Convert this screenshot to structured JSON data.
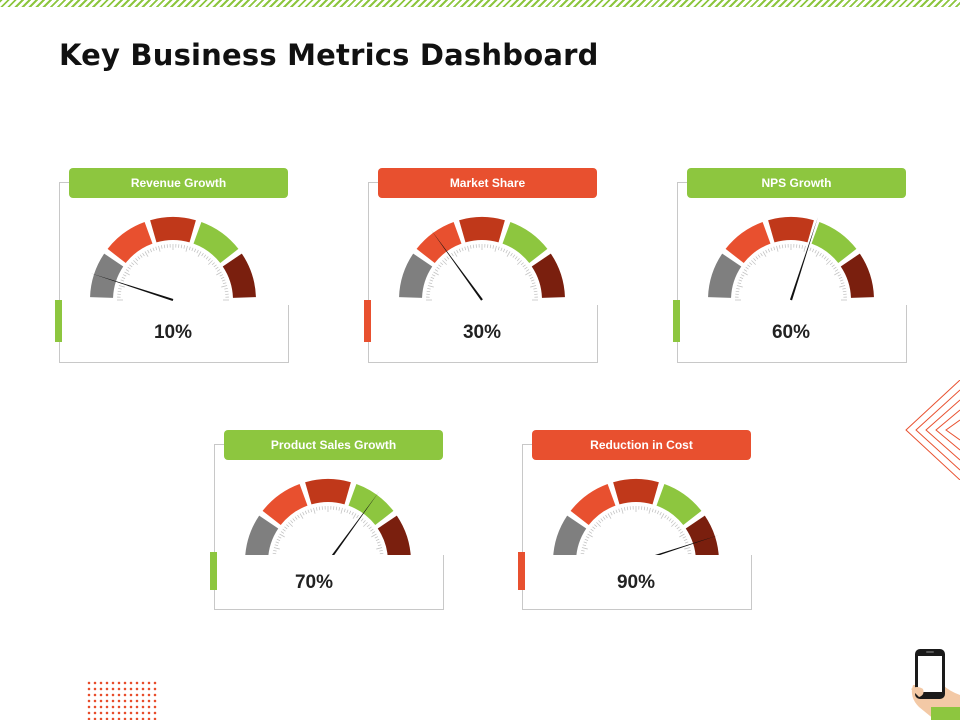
{
  "title": "Key Business Metrics Dashboard",
  "colors": {
    "green": "#8dc63f",
    "orange": "#e8502f",
    "red": "#c0381a",
    "dark_red": "#7a1f0e",
    "grey": "#7f7f7f"
  },
  "gauges": [
    {
      "label": "Revenue Growth",
      "value": "10%",
      "percent": 10,
      "header_color": "#8dc63f"
    },
    {
      "label": "Market Share",
      "value": "30%",
      "percent": 30,
      "header_color": "#e8502f"
    },
    {
      "label": "NPS Growth",
      "value": "60%",
      "percent": 60,
      "header_color": "#8dc63f"
    },
    {
      "label": "Product Sales Growth",
      "value": "70%",
      "percent": 70,
      "header_color": "#8dc63f"
    },
    {
      "label": "Reduction in Cost",
      "value": "90%",
      "percent": 90,
      "header_color": "#e8502f"
    }
  ]
}
